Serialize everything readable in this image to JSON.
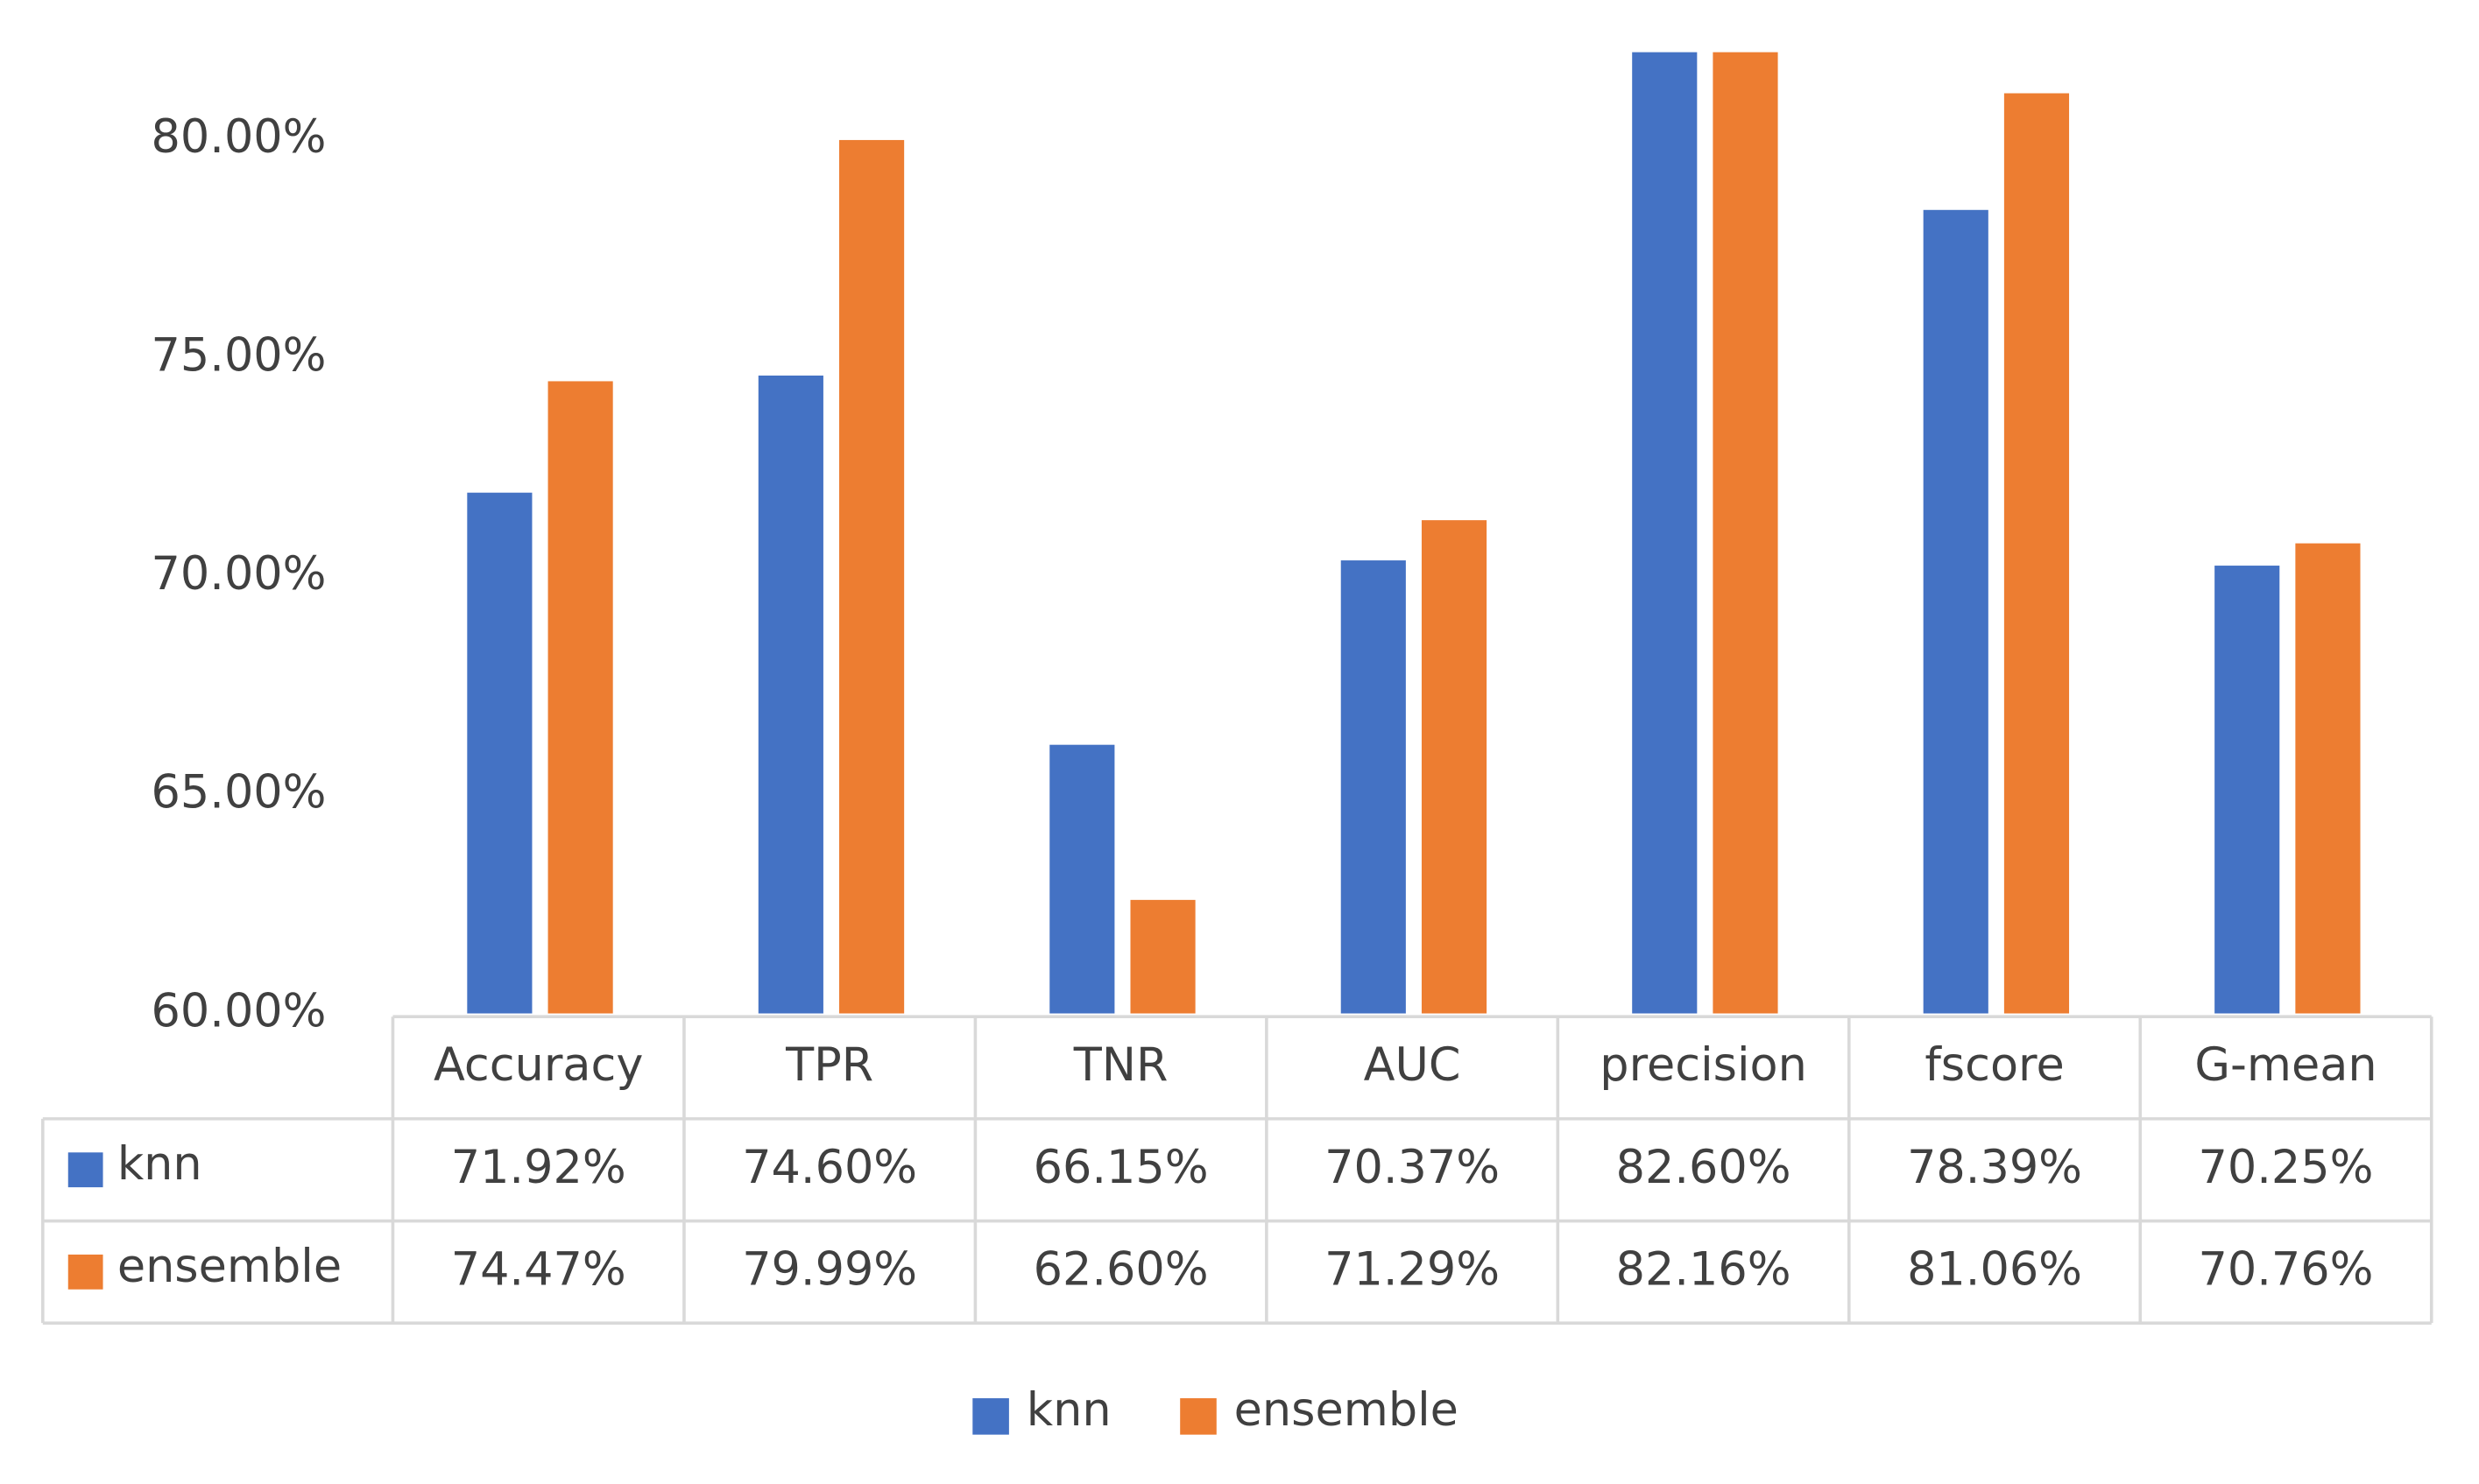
{
  "chart_data": {
    "type": "bar",
    "categories": [
      "Accuracy",
      "TPR",
      "TNR",
      "AUC",
      "precision",
      "fscore",
      "G-mean"
    ],
    "series": [
      {
        "name": "knn",
        "color": "#4472c4",
        "values": [
          71.92,
          74.6,
          66.15,
          70.37,
          82.6,
          78.39,
          70.25
        ],
        "value_labels": [
          "71.92%",
          "74.60%",
          "66.15%",
          "70.37%",
          "82.60%",
          "78.39%",
          "70.25%"
        ]
      },
      {
        "name": "ensemble",
        "color": "#ed7d31",
        "values": [
          74.47,
          79.99,
          62.6,
          71.29,
          82.16,
          81.06,
          70.76
        ],
        "value_labels": [
          "74.47%",
          "79.99%",
          "62.60%",
          "71.29%",
          "82.16%",
          "81.06%",
          "70.76%"
        ]
      }
    ],
    "ylim": [
      60,
      82
    ],
    "yticks": [
      {
        "value": 60,
        "label": "60.00%"
      },
      {
        "value": 65,
        "label": "65.00%"
      },
      {
        "value": 70,
        "label": "70.00%"
      },
      {
        "value": 75,
        "label": "75.00%"
      },
      {
        "value": 80,
        "label": "80.00%"
      }
    ],
    "grid": false,
    "legend": "bottom"
  }
}
